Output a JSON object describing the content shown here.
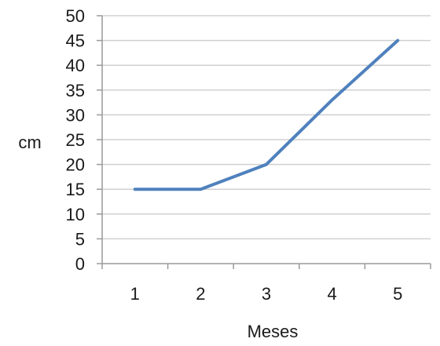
{
  "chart_data": {
    "type": "line",
    "x": [
      1,
      2,
      3,
      4,
      5
    ],
    "series": [
      {
        "values": [
          15,
          15,
          20,
          33,
          45
        ]
      }
    ],
    "xlabel": "Meses",
    "ylabel": "cm",
    "ylim": [
      0,
      50
    ],
    "ytick_step": 5,
    "y_ticks": [
      "0",
      "5",
      "10",
      "15",
      "20",
      "25",
      "30",
      "35",
      "40",
      "45",
      "50"
    ],
    "x_ticks": [
      "1",
      "2",
      "3",
      "4",
      "5"
    ],
    "grid": true,
    "line_color": "#4f81bd"
  }
}
